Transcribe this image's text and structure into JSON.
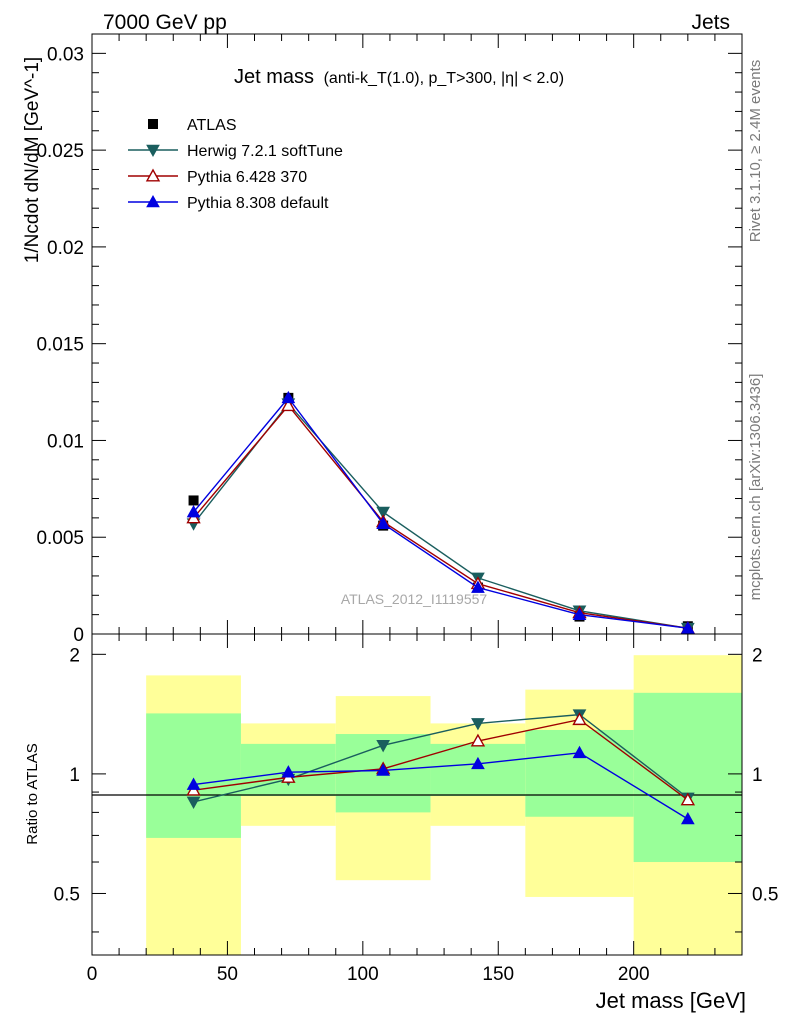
{
  "header": {
    "left": "7000 GeV pp",
    "right": "Jets"
  },
  "side_text": {
    "rivet": "Rivet 3.1.10, ≥ 2.4M events",
    "mcplots": "mcplots.cern.ch [arXiv:1306.3436]"
  },
  "watermark": "ATLAS_2012_I1119557",
  "chart_data": [
    {
      "type": "scatter",
      "panel": "main",
      "title_main": "Jet mass",
      "title_sub": "(anti-k_T(1.0), p_T>300, |η| < 2.0)",
      "ylabel": "1/Ncdot dN/dM [GeV^-1]",
      "xlim": [
        0,
        240
      ],
      "ylim": [
        0,
        0.031
      ],
      "yticks": [
        0,
        0.005,
        0.01,
        0.015,
        0.02,
        0.025,
        0.03
      ],
      "ytick_labels": [
        "0",
        "0.005",
        "0.01",
        "0.015",
        "0.02",
        "0.025",
        "0.03"
      ],
      "legend_position": "top-left",
      "bins": [
        [
          20,
          55
        ],
        [
          55,
          90
        ],
        [
          90,
          125
        ],
        [
          125,
          160
        ],
        [
          160,
          200
        ],
        [
          200,
          240
        ]
      ],
      "x": [
        37.5,
        72.5,
        107.5,
        142.5,
        180,
        220
      ],
      "series": [
        {
          "name": "ATLAS",
          "marker": "square",
          "color": "#000000",
          "line": false,
          "values": [
            0.0069,
            0.0122,
            0.0056,
            0.0024,
            0.0009,
            0.0004
          ]
        },
        {
          "name": "Herwig 7.2.1 softTune",
          "marker": "triangle-down",
          "color": "#1a5e5e",
          "line": true,
          "values": [
            0.0057,
            0.0119,
            0.0063,
            0.0029,
            0.0012,
            0.0003
          ]
        },
        {
          "name": "Pythia 6.428 370",
          "marker": "triangle-up-open",
          "color": "#a00000",
          "line": true,
          "values": [
            0.006,
            0.0118,
            0.0058,
            0.0026,
            0.0011,
            0.0003
          ]
        },
        {
          "name": "Pythia 8.308 default",
          "marker": "triangle-up",
          "color": "#0000e0",
          "line": true,
          "values": [
            0.0063,
            0.0122,
            0.0057,
            0.0024,
            0.001,
            0.0003
          ]
        }
      ]
    },
    {
      "type": "scatter",
      "panel": "ratio",
      "xlabel": "Jet mass [GeV]",
      "ylabel": "Ratio to ATLAS",
      "xlim": [
        0,
        240
      ],
      "ylim": [
        0.35,
        2.25
      ],
      "xticks": [
        0,
        50,
        100,
        150,
        200
      ],
      "xtick_labels": [
        "0",
        "50",
        "100",
        "150",
        "200"
      ],
      "yticks": [
        0.5,
        1,
        2
      ],
      "ytick_labels": [
        "0.5",
        "1",
        "2"
      ],
      "bins": [
        [
          20,
          55
        ],
        [
          55,
          90
        ],
        [
          90,
          125
        ],
        [
          125,
          160
        ],
        [
          160,
          200
        ],
        [
          200,
          240
        ]
      ],
      "x": [
        37.5,
        72.5,
        107.5,
        142.5,
        180,
        220
      ],
      "band_inner": [
        [
          0.69,
          1.42
        ],
        [
          0.88,
          1.19
        ],
        [
          0.8,
          1.26
        ],
        [
          0.88,
          1.19
        ],
        [
          0.78,
          1.29
        ],
        [
          0.6,
          1.6
        ]
      ],
      "band_outer": [
        [
          0.35,
          1.77
        ],
        [
          0.74,
          1.34
        ],
        [
          0.54,
          1.57
        ],
        [
          0.74,
          1.34
        ],
        [
          0.49,
          1.63
        ],
        [
          0.35,
          1.99
        ]
      ],
      "band_inner_color": "#99ff99",
      "band_outer_color": "#ffff99",
      "series": [
        {
          "name": "Herwig 7.2.1 softTune",
          "marker": "triangle-down",
          "color": "#1a5e5e",
          "line": true,
          "values": [
            0.85,
            0.97,
            1.18,
            1.34,
            1.41,
            0.87
          ]
        },
        {
          "name": "Pythia 6.428 370",
          "marker": "triangle-up-open",
          "color": "#a00000",
          "line": true,
          "values": [
            0.91,
            0.98,
            1.03,
            1.21,
            1.37,
            0.86
          ]
        },
        {
          "name": "Pythia 8.308 default",
          "marker": "triangle-up",
          "color": "#0000e0",
          "line": true,
          "values": [
            0.94,
            1.01,
            1.02,
            1.06,
            1.13,
            0.77
          ]
        }
      ]
    }
  ]
}
